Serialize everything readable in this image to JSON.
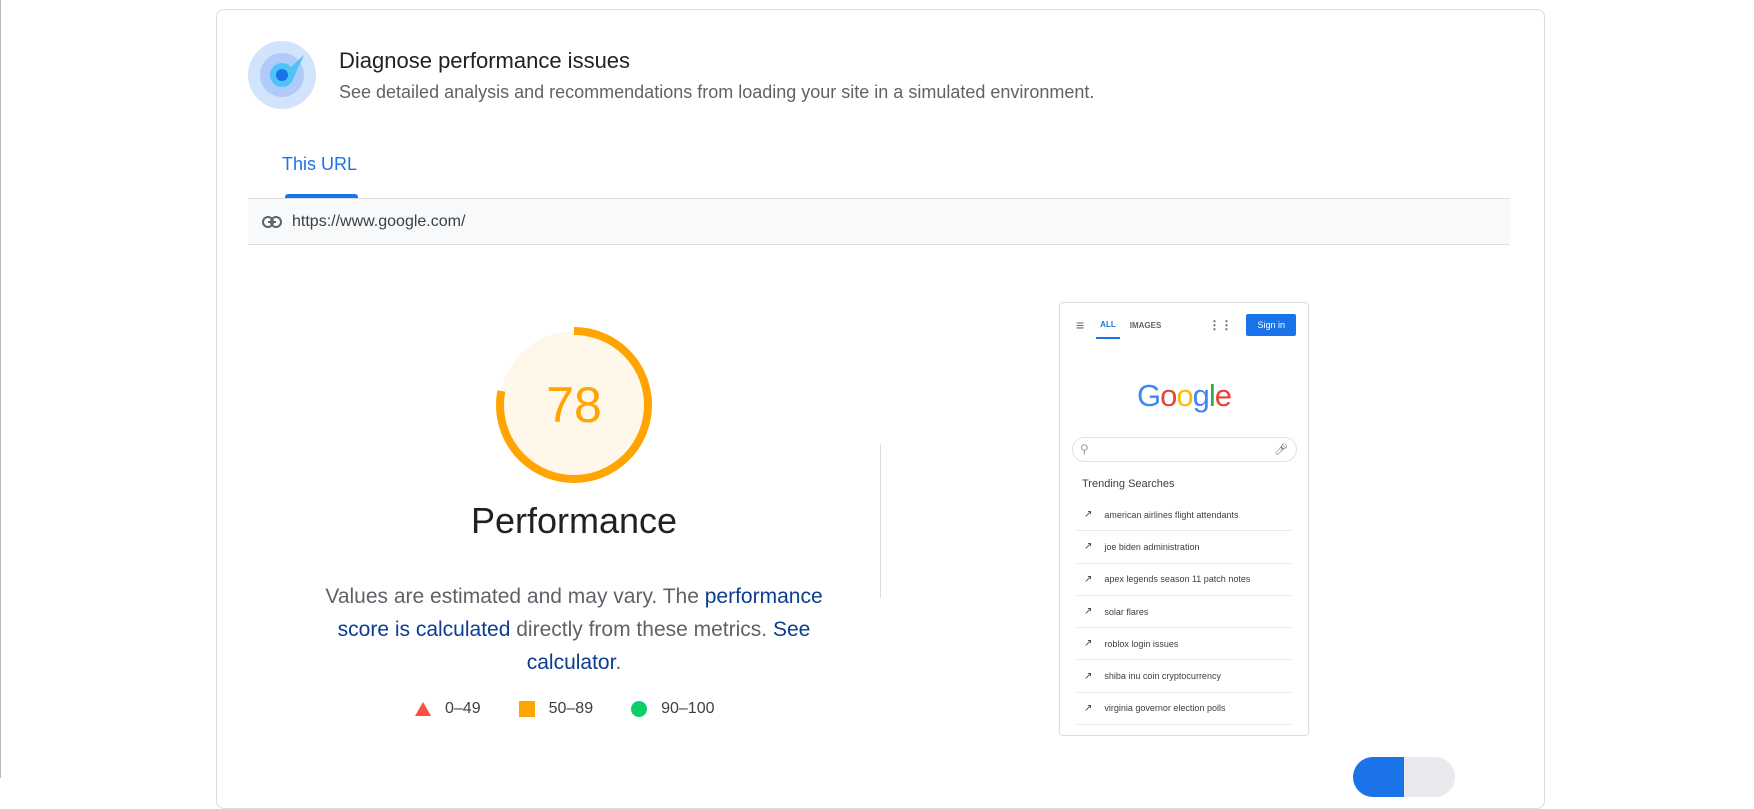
{
  "header": {
    "title": "Diagnose performance issues",
    "subtitle": "See detailed analysis and recommendations from loading your site in a simulated environment."
  },
  "tabs": [
    {
      "label": "This URL",
      "active": true
    }
  ],
  "url": "https://www.google.com/",
  "score": {
    "value": "78",
    "fraction": 0.78,
    "label": "Performance",
    "color": "#ffa400"
  },
  "description": {
    "pre": "Values are estimated and may vary. The ",
    "link1": "performance score is calculated",
    "mid": " directly from these metrics. ",
    "link2": "See calculator",
    "post": "."
  },
  "legend": [
    {
      "range": "0–49",
      "color": "#ff4e42",
      "shape": "triangle"
    },
    {
      "range": "50–89",
      "color": "#ffa400",
      "shape": "square"
    },
    {
      "range": "90–100",
      "color": "#0cce6b",
      "shape": "circle"
    }
  ],
  "screenshot": {
    "nav": [
      "ALL",
      "IMAGES"
    ],
    "signin": "Sign in",
    "logo": "Google",
    "trending_title": "Trending Searches",
    "trending": [
      "american airlines flight attendants",
      "joe biden administration",
      "apex legends season 11 patch notes",
      "solar flares",
      "roblox login issues",
      "shiba inu coin cryptocurrency",
      "virginia governor election polls"
    ]
  }
}
